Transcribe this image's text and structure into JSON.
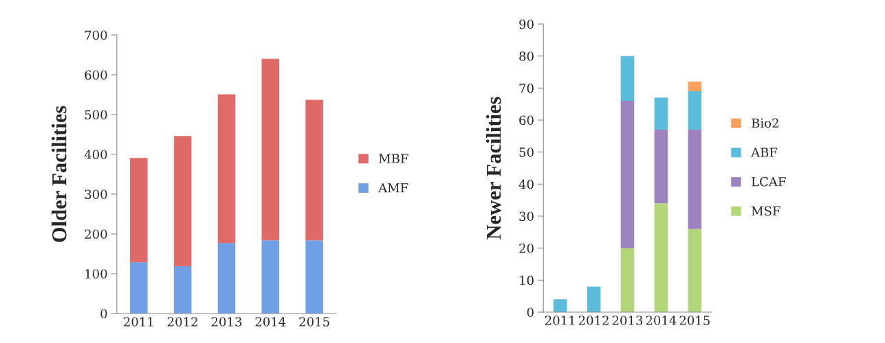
{
  "chart_data": [
    {
      "type": "bar",
      "ylabel": "Older Facilities",
      "categories": [
        "2011",
        "2012",
        "2013",
        "2014",
        "2015"
      ],
      "stacked": true,
      "ylim": [
        0,
        700
      ],
      "yticks": [
        0,
        100,
        200,
        300,
        400,
        500,
        600,
        700
      ],
      "grid": false,
      "legend": "right",
      "series": [
        {
          "name": "AMF",
          "color": "#6fa0e6",
          "values": [
            129,
            119,
            177,
            184,
            184
          ]
        },
        {
          "name": "MBF",
          "color": "#e06a68",
          "values": [
            262,
            327,
            374,
            456,
            353
          ]
        }
      ]
    },
    {
      "type": "bar",
      "ylabel": "Newer Facilities",
      "categories": [
        "2011",
        "2012",
        "2013",
        "2014",
        "2015"
      ],
      "stacked": true,
      "ylim": [
        0,
        90
      ],
      "yticks": [
        0,
        10,
        20,
        30,
        40,
        50,
        60,
        70,
        80,
        90
      ],
      "grid": false,
      "legend": "right",
      "series": [
        {
          "name": "MSF",
          "color": "#b3d57a",
          "values": [
            0,
            0,
            20,
            34,
            26
          ]
        },
        {
          "name": "LCAF",
          "color": "#9c83bf",
          "values": [
            0,
            0,
            46,
            23,
            31
          ]
        },
        {
          "name": "ABF",
          "color": "#5bbcdc",
          "values": [
            4,
            8,
            14,
            10,
            12
          ]
        },
        {
          "name": "Bio2",
          "color": "#f7a060",
          "values": [
            0,
            0,
            0,
            0,
            3
          ]
        }
      ]
    }
  ]
}
